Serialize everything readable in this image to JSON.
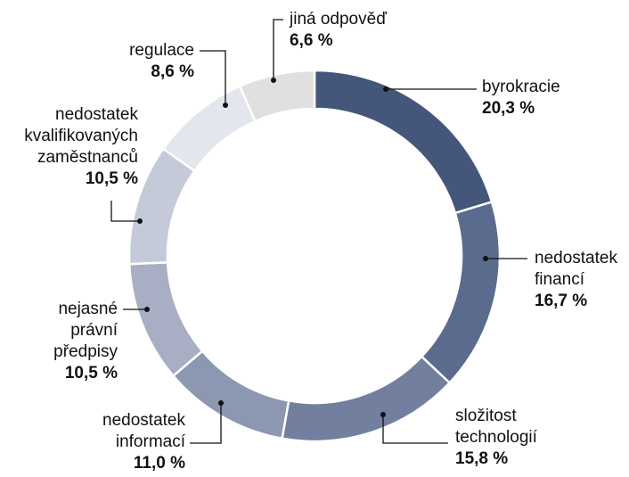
{
  "chart_data": {
    "type": "donut",
    "categories": [
      "byrokracie",
      "nedostatek financí",
      "složitost technologií",
      "nedostatek informací",
      "nejasné právní předpisy",
      "nedostatek kvalifikovaných zaměstnanců",
      "regulace",
      "jiná odpověď"
    ],
    "values": [
      20.3,
      16.7,
      15.8,
      11.0,
      10.5,
      10.5,
      8.6,
      6.6
    ],
    "value_labels": [
      "20,3 %",
      "16,7 %",
      "15,8 %",
      "11,0 %",
      "10,5 %",
      "10,5 %",
      "8,6 %",
      "6,6 %"
    ],
    "colors": [
      "#44567a",
      "#5a6b8e",
      "#737f9f",
      "#8c97b2",
      "#a8afc4",
      "#c5cad8",
      "#e4e6ee",
      "#e0e0e0"
    ]
  }
}
